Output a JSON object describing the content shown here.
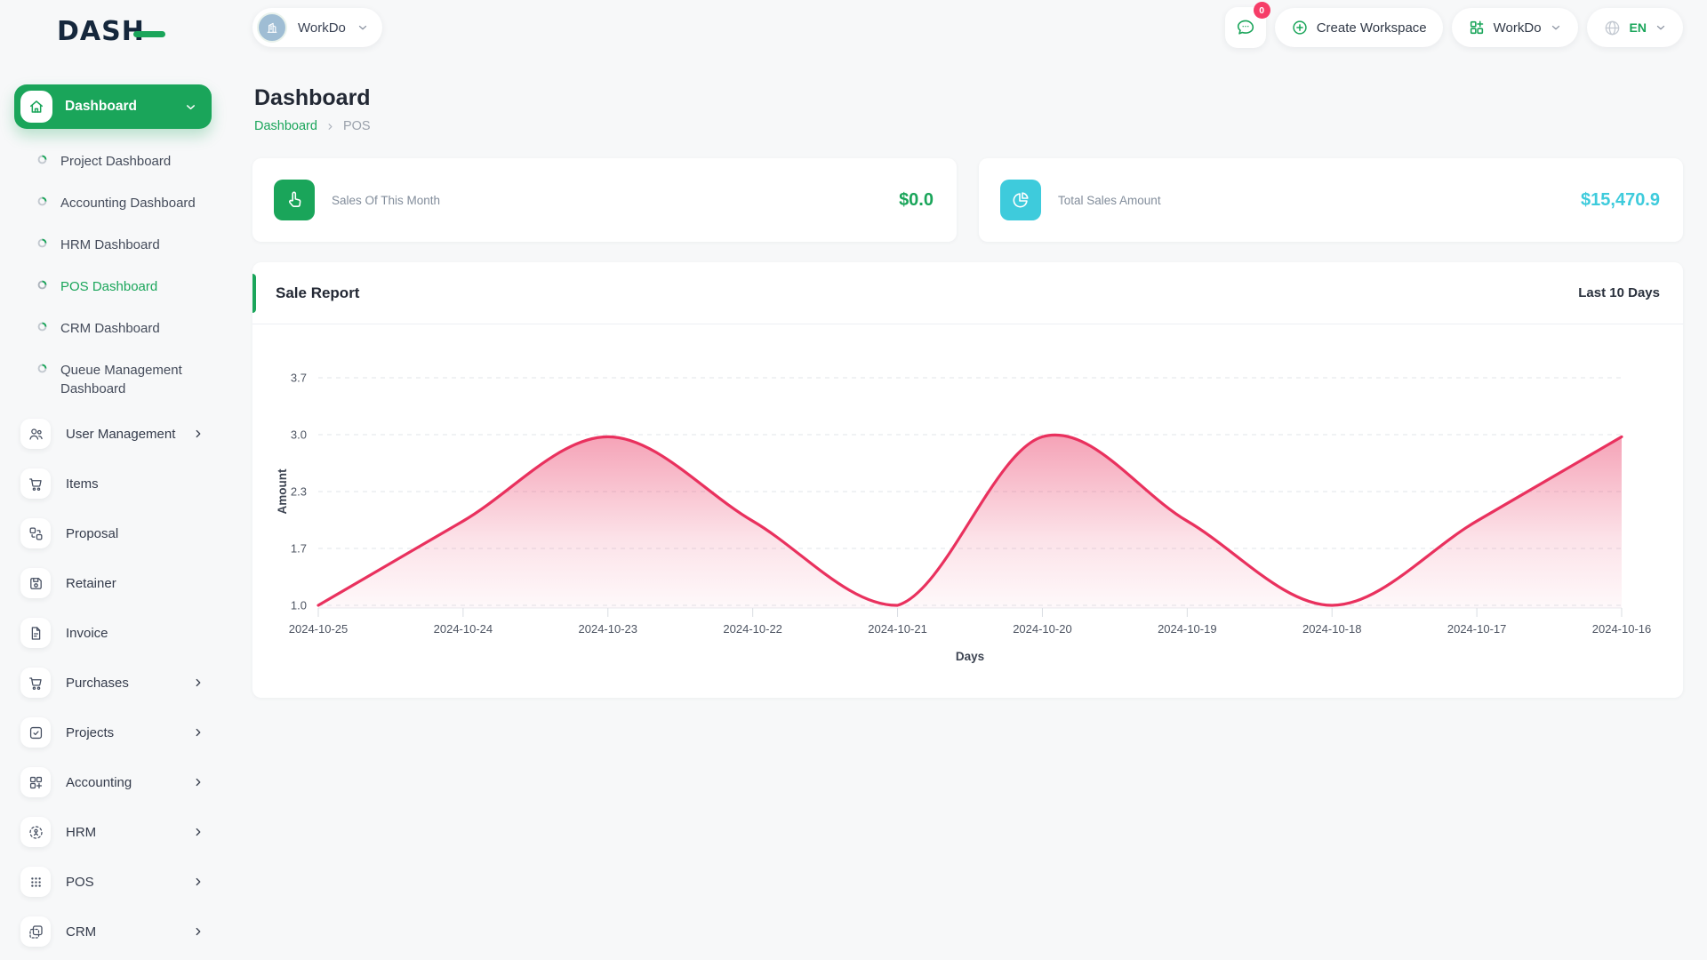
{
  "brand": {
    "logo_text": "DASH"
  },
  "colors": {
    "green": "#1aa55a",
    "cyan": "#3ecbdc",
    "chart_pink": "#e9315e",
    "badge_pink": "#f63d68"
  },
  "topbar": {
    "workspace": {
      "label": "WorkDo"
    },
    "messages_badge": "0",
    "create_workspace": "Create Workspace",
    "workdo_menu": "WorkDo",
    "language": "EN"
  },
  "sidebar": {
    "dashboard": {
      "label": "Dashboard",
      "items": [
        {
          "label": "Project Dashboard",
          "active": false
        },
        {
          "label": "Accounting Dashboard",
          "active": false
        },
        {
          "label": "HRM Dashboard",
          "active": false
        },
        {
          "label": "POS Dashboard",
          "active": true
        },
        {
          "label": "CRM Dashboard",
          "active": false
        },
        {
          "label": "Queue Management Dashboard",
          "active": false
        }
      ]
    },
    "menu": [
      {
        "label": "User Management",
        "expandable": true
      },
      {
        "label": "Items",
        "expandable": false
      },
      {
        "label": "Proposal",
        "expandable": false
      },
      {
        "label": "Retainer",
        "expandable": false
      },
      {
        "label": "Invoice",
        "expandable": false
      },
      {
        "label": "Purchases",
        "expandable": true
      },
      {
        "label": "Projects",
        "expandable": true
      },
      {
        "label": "Accounting",
        "expandable": true
      },
      {
        "label": "HRM",
        "expandable": true
      },
      {
        "label": "POS",
        "expandable": true
      },
      {
        "label": "CRM",
        "expandable": true
      }
    ]
  },
  "page": {
    "title": "Dashboard",
    "breadcrumb": {
      "root": "Dashboard",
      "current": "POS"
    }
  },
  "stats": [
    {
      "label": "Sales Of This Month",
      "value": "$0.0",
      "color": "#1aa55a"
    },
    {
      "label": "Total Sales Amount",
      "value": "$15,470.9",
      "color": "#3ecbdc"
    }
  ],
  "sale_report": {
    "title": "Sale Report",
    "period": "Last 10 Days"
  },
  "chart_data": {
    "type": "area",
    "title": "Sale Report",
    "x": [
      "2024-10-25",
      "2024-10-24",
      "2024-10-23",
      "2024-10-22",
      "2024-10-21",
      "2024-10-20",
      "2024-10-19",
      "2024-10-18",
      "2024-10-17",
      "2024-10-16"
    ],
    "series": [
      {
        "name": "Amount",
        "values": [
          1.0,
          2.0,
          3.0,
          2.0,
          1.0,
          3.0,
          2.0,
          1.0,
          2.0,
          3.0
        ]
      }
    ],
    "xlabel": "Days",
    "ylabel": "Amount",
    "ylim": [
      1.0,
      3.7
    ],
    "yticks": [
      "1.0",
      "1.7",
      "2.3",
      "3.0",
      "3.7"
    ],
    "grid": "horizontal-dashed",
    "legend": "none",
    "line_color": "#e9315e",
    "fill": "pink-to-transparent-vertical-gradient"
  }
}
